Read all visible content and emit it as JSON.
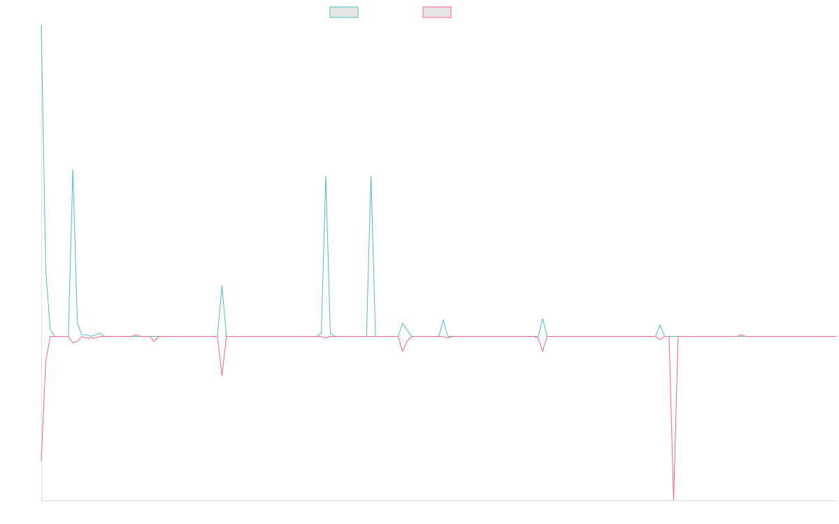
{
  "chart_data": {
    "type": "line",
    "title": "",
    "xlabel": "",
    "ylabel": "",
    "grid": false,
    "legend": "top-center",
    "x_count": 177,
    "ylim": [
      -100,
      190
    ],
    "series": [
      {
        "color": "#4bc0c0",
        "points": [
          [
            0,
            190
          ],
          [
            1,
            40
          ],
          [
            2,
            4
          ],
          [
            3,
            0
          ],
          [
            6,
            0
          ],
          [
            7,
            102
          ],
          [
            8,
            8
          ],
          [
            9,
            1
          ],
          [
            10,
            1
          ],
          [
            11,
            0
          ],
          [
            13,
            2
          ],
          [
            14,
            0
          ],
          [
            21,
            0
          ],
          [
            22,
            0
          ],
          [
            25,
            0
          ],
          [
            26,
            0
          ],
          [
            39,
            0
          ],
          [
            40,
            31
          ],
          [
            41,
            0
          ],
          [
            61,
            0
          ],
          [
            62,
            2
          ],
          [
            63,
            98
          ],
          [
            64,
            2
          ],
          [
            65,
            0
          ],
          [
            71,
            0
          ],
          [
            72,
            0
          ],
          [
            73,
            98
          ],
          [
            74,
            0
          ],
          [
            79,
            0
          ],
          [
            80,
            8
          ],
          [
            81,
            4
          ],
          [
            82,
            0
          ],
          [
            88,
            0
          ],
          [
            89,
            10
          ],
          [
            90,
            0
          ],
          [
            91,
            0
          ],
          [
            92,
            0
          ],
          [
            94,
            0
          ],
          [
            108,
            0
          ],
          [
            109,
            0
          ],
          [
            110,
            0
          ],
          [
            111,
            11
          ],
          [
            112,
            0
          ],
          [
            133,
            0
          ],
          [
            134,
            0
          ],
          [
            135,
            0
          ],
          [
            136,
            0
          ],
          [
            137,
            7
          ],
          [
            138,
            0
          ],
          [
            139,
            0
          ],
          [
            140,
            0
          ],
          [
            141,
            0
          ],
          [
            142,
            0
          ],
          [
            143,
            0
          ],
          [
            144,
            0
          ],
          [
            145,
            0
          ],
          [
            146,
            0
          ],
          [
            147,
            0
          ],
          [
            148,
            0
          ],
          [
            149,
            0
          ],
          [
            150,
            0
          ],
          [
            151,
            0
          ],
          [
            152,
            0
          ],
          [
            153,
            0
          ],
          [
            154,
            0
          ],
          [
            155,
            0
          ],
          [
            156,
            0
          ],
          [
            157,
            0
          ],
          [
            158,
            0
          ],
          [
            159,
            0
          ],
          [
            160,
            0
          ],
          [
            161,
            0
          ],
          [
            162,
            0
          ],
          [
            163,
            0
          ],
          [
            164,
            0
          ],
          [
            165,
            0
          ],
          [
            166,
            0
          ],
          [
            167,
            0
          ],
          [
            168,
            0
          ],
          [
            169,
            0
          ],
          [
            170,
            0
          ],
          [
            171,
            0
          ],
          [
            172,
            0
          ],
          [
            173,
            0
          ],
          [
            174,
            0
          ],
          [
            175,
            0
          ],
          [
            176,
            0
          ]
        ]
      },
      {
        "color": "#ff6384",
        "points": [
          [
            0,
            -76
          ],
          [
            1,
            -15
          ],
          [
            2,
            0
          ],
          [
            3,
            0
          ],
          [
            6,
            0
          ],
          [
            7,
            -4
          ],
          [
            8,
            -3
          ],
          [
            9,
            0
          ],
          [
            10,
            -1
          ],
          [
            11,
            -1
          ],
          [
            12,
            -1
          ],
          [
            13,
            0
          ],
          [
            20,
            0
          ],
          [
            21,
            1
          ],
          [
            22,
            0
          ],
          [
            24,
            0
          ],
          [
            25,
            -3
          ],
          [
            26,
            0
          ],
          [
            39,
            0
          ],
          [
            40,
            -24
          ],
          [
            41,
            0
          ],
          [
            61,
            0
          ],
          [
            62,
            0
          ],
          [
            63,
            -1
          ],
          [
            64,
            0
          ],
          [
            71,
            0
          ],
          [
            72,
            0
          ],
          [
            73,
            0
          ],
          [
            79,
            0
          ],
          [
            80,
            -9
          ],
          [
            81,
            -3
          ],
          [
            82,
            0
          ],
          [
            88,
            0
          ],
          [
            89,
            0
          ],
          [
            90,
            -1
          ],
          [
            91,
            0
          ],
          [
            92,
            0
          ],
          [
            108,
            0
          ],
          [
            109,
            0
          ],
          [
            110,
            -1
          ],
          [
            111,
            -9
          ],
          [
            112,
            0
          ],
          [
            133,
            0
          ],
          [
            134,
            0
          ],
          [
            135,
            0
          ],
          [
            136,
            0
          ],
          [
            137,
            -2
          ],
          [
            138,
            0
          ],
          [
            139,
            0
          ],
          [
            140,
            -100
          ],
          [
            141,
            0
          ],
          [
            142,
            0
          ],
          [
            153,
            0
          ],
          [
            154,
            0
          ],
          [
            155,
            1
          ],
          [
            156,
            0
          ],
          [
            157,
            0
          ],
          [
            158,
            0
          ],
          [
            159,
            0
          ],
          [
            160,
            0
          ],
          [
            161,
            0
          ],
          [
            162,
            0
          ],
          [
            163,
            0
          ],
          [
            164,
            0
          ],
          [
            165,
            0
          ],
          [
            166,
            0
          ],
          [
            167,
            0
          ],
          [
            168,
            0
          ],
          [
            169,
            0
          ],
          [
            170,
            0
          ],
          [
            171,
            0
          ],
          [
            172,
            0
          ],
          [
            173,
            0
          ],
          [
            174,
            0
          ],
          [
            175,
            0
          ],
          [
            176,
            0
          ]
        ]
      }
    ]
  }
}
